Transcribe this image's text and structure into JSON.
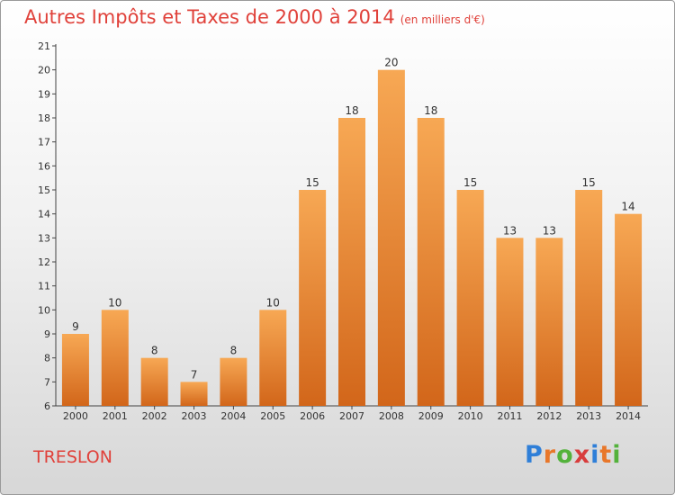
{
  "header": {
    "title": "Autres Impôts et Taxes de 2000 à 2014",
    "subtitle": "(en milliers d'€)"
  },
  "footer": {
    "commune": "TRESLON",
    "brand_letters": [
      "P",
      "r",
      "o",
      "x",
      "i",
      "t",
      "i"
    ],
    "brand_colors": [
      "#2f7fd8",
      "#e8772a",
      "#53b23b",
      "#d83c3c",
      "#2f7fd8",
      "#e8772a",
      "#53b23b"
    ]
  },
  "colors": {
    "bar_light": "#f7a854",
    "bar_dark": "#d2661a",
    "title": "#e0413a"
  },
  "chart_data": {
    "type": "bar",
    "title": "Autres Impôts et Taxes de 2000 à 2014",
    "subtitle": "(en milliers d'€)",
    "categories": [
      "2000",
      "2001",
      "2002",
      "2003",
      "2004",
      "2005",
      "2006",
      "2007",
      "2008",
      "2009",
      "2010",
      "2011",
      "2012",
      "2013",
      "2014"
    ],
    "values": [
      9,
      10,
      8,
      7,
      8,
      10,
      15,
      18,
      20,
      18,
      15,
      13,
      13,
      15,
      14
    ],
    "ylim": [
      6,
      21
    ],
    "yticks": [
      6,
      7,
      8,
      9,
      10,
      11,
      12,
      13,
      14,
      15,
      16,
      17,
      18,
      19,
      20,
      21
    ],
    "grid": false,
    "data_labels": true,
    "legend": "none"
  }
}
